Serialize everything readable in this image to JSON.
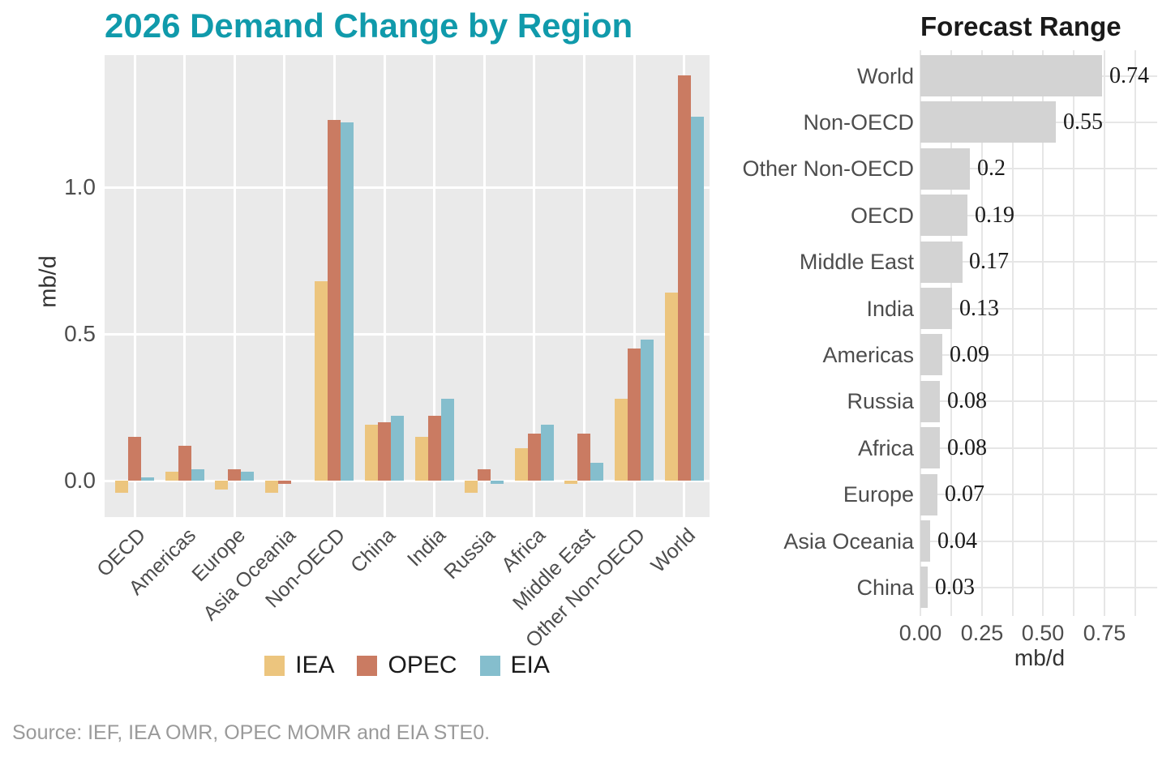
{
  "page": {
    "source_note": "Source: IEF, IEA OMR, OPEC MOMR and EIA STE0."
  },
  "chart_data": [
    {
      "id": "demand-change-by-region",
      "type": "bar",
      "title": "2026 Demand Change by Region",
      "title_color": "#109aab",
      "ylabel": "mb/d",
      "plot_bg": "#eaeaea",
      "grid": "white major gridlines on gray panel",
      "legend_position": "bottom",
      "ylim": [
        -0.12,
        1.45
      ],
      "yticks": [
        {
          "label": "0.0",
          "value": 0.0
        },
        {
          "label": "0.5",
          "value": 0.5
        },
        {
          "label": "1.0",
          "value": 1.0
        }
      ],
      "categories": [
        "OECD",
        "Americas",
        "Europe",
        "Asia Oceania",
        "Non-OECD",
        "China",
        "India",
        "Russia",
        "Africa",
        "Middle East",
        "Other Non-OECD",
        "World"
      ],
      "series": [
        {
          "name": "IEA",
          "color": "#ecc57e",
          "values": [
            -0.04,
            0.03,
            -0.03,
            -0.04,
            0.68,
            0.19,
            0.15,
            -0.04,
            0.11,
            -0.01,
            0.28,
            0.64
          ]
        },
        {
          "name": "OPEC",
          "color": "#ca7b62",
          "values": [
            0.15,
            0.12,
            0.04,
            -0.01,
            1.23,
            0.2,
            0.22,
            0.04,
            0.16,
            0.16,
            0.45,
            1.38
          ]
        },
        {
          "name": "EIA",
          "color": "#85becd",
          "values": [
            0.01,
            0.04,
            0.03,
            0.0,
            1.22,
            0.22,
            0.28,
            -0.01,
            0.19,
            0.06,
            0.48,
            1.24
          ]
        }
      ]
    },
    {
      "id": "forecast-range",
      "type": "bar",
      "orientation": "horizontal",
      "title": "Forecast Range",
      "bar_color": "#d3d3d3",
      "xlabel": "mb/d",
      "grid": "light gray gridlines on white panel",
      "xlim": [
        0,
        0.96
      ],
      "xticks": [
        {
          "label": "0.00",
          "value": 0.0
        },
        {
          "label": "0.25",
          "value": 0.25
        },
        {
          "label": "0.50",
          "value": 0.5
        },
        {
          "label": "0.75",
          "value": 0.75
        }
      ],
      "categories": [
        "World",
        "Non-OECD",
        "Other Non-OECD",
        "OECD",
        "Middle East",
        "India",
        "Americas",
        "Russia",
        "Africa",
        "Europe",
        "Asia Oceania",
        "China"
      ],
      "values": [
        0.74,
        0.55,
        0.2,
        0.19,
        0.17,
        0.13,
        0.09,
        0.08,
        0.08,
        0.07,
        0.04,
        0.03
      ],
      "value_labels": [
        "0.74",
        "0.55",
        "0.2",
        "0.19",
        "0.17",
        "0.13",
        "0.09",
        "0.08",
        "0.08",
        "0.07",
        "0.04",
        "0.03"
      ]
    }
  ]
}
